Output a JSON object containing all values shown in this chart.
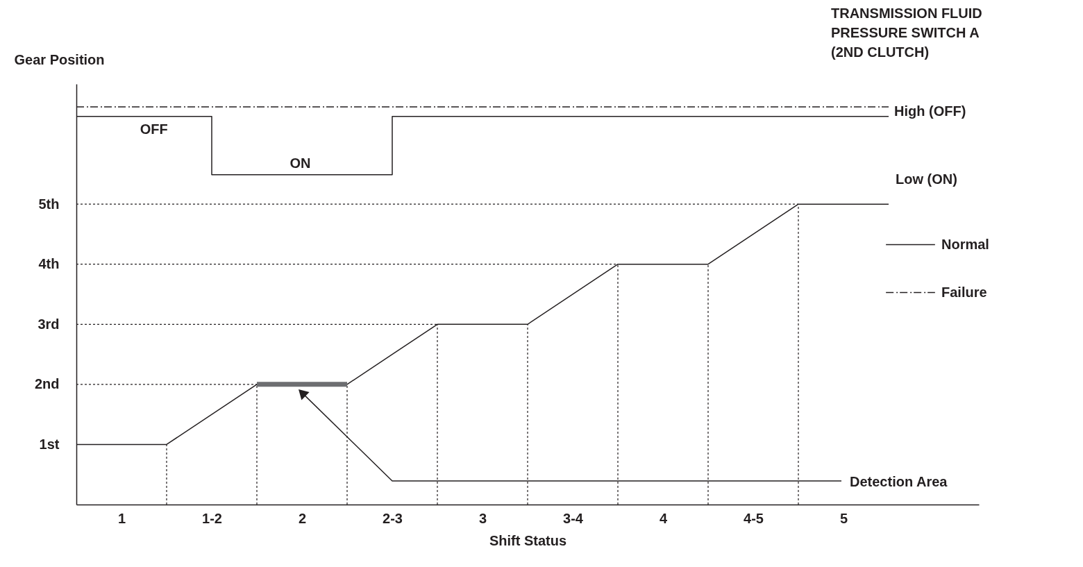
{
  "chart_data": {
    "type": "line",
    "title": "TRANSMISSION FLUID PRESSURE SWITCH A (2ND CLUTCH)",
    "xlabel": "Shift Status",
    "ylabel": "Gear Position",
    "xlim": [
      0.75,
      5.75
    ],
    "ylim": [
      0,
      7
    ],
    "xticks": [
      1,
      {
        "value": 1.5,
        "label": "1-2"
      },
      2,
      {
        "value": 2.5,
        "label": "2-3"
      },
      3,
      {
        "value": 3.5,
        "label": "3-4"
      },
      4,
      {
        "value": 4.5,
        "label": "4-5"
      },
      5
    ],
    "yticks": [
      {
        "value": 1,
        "label": "1st"
      },
      {
        "value": 2,
        "label": "2nd"
      },
      {
        "value": 3,
        "label": "3rd"
      },
      {
        "value": 4,
        "label": "4th"
      },
      {
        "value": 5,
        "label": "5th"
      }
    ],
    "x": [
      0.75,
      1.25,
      1.75,
      2.25,
      2.75,
      3.25,
      3.75,
      4.25,
      4.75,
      5.25
    ],
    "series": [
      {
        "color": "#231f20",
        "values": [
          1,
          1,
          2,
          2,
          3,
          3,
          4,
          4,
          5,
          5
        ]
      },
      {
        "color": "#6d6e71",
        "x": [
          1.75,
          2.25
        ],
        "values": [
          2,
          2
        ]
      },
      {
        "color": "#231f20",
        "line_style": "dotted",
        "x": [
          1.25,
          1.25
        ],
        "values": [
          0,
          1
        ]
      },
      {
        "color": "#231f20",
        "line_style": "dotted",
        "x": [
          1.75,
          1.75
        ],
        "values": [
          0,
          2
        ]
      },
      {
        "color": "#231f20",
        "line_style": "dotted",
        "x": [
          2.25,
          2.25
        ],
        "values": [
          0,
          2
        ]
      },
      {
        "color": "#231f20",
        "line_style": "dotted",
        "x": [
          2.75,
          2.75
        ],
        "values": [
          0,
          3
        ]
      },
      {
        "color": "#231f20",
        "line_style": "dotted",
        "x": [
          3.25,
          3.25
        ],
        "values": [
          0,
          3
        ]
      },
      {
        "color": "#231f20",
        "line_style": "dotted",
        "x": [
          3.75,
          3.75
        ],
        "values": [
          0,
          4
        ]
      },
      {
        "color": "#231f20",
        "line_style": "dotted",
        "x": [
          4.25,
          4.25
        ],
        "values": [
          0,
          4
        ]
      },
      {
        "color": "#231f20",
        "line_style": "dotted",
        "x": [
          4.75,
          4.75
        ],
        "values": [
          0,
          5
        ]
      },
      {
        "color": "#231f20",
        "line_style": "dotted",
        "x": [
          0.75,
          1.75
        ],
        "values": [
          2,
          2
        ]
      },
      {
        "color": "#231f20",
        "line_style": "dotted",
        "x": [
          0.75,
          2.75
        ],
        "values": [
          3,
          3
        ]
      },
      {
        "color": "#231f20",
        "line_style": "dotted",
        "x": [
          0.75,
          3.75
        ],
        "values": [
          4,
          4
        ]
      },
      {
        "color": "#231f20",
        "line_style": "dotted",
        "x": [
          0.75,
          4.75
        ],
        "values": [
          5,
          5
        ]
      },
      {
        "name": "Normal",
        "color": "#231f20",
        "x": [
          0.75,
          1.5,
          1.5,
          2.5,
          2.5,
          5.25
        ],
        "values": [
          6.46,
          6.46,
          5.49,
          5.49,
          6.46,
          6.46
        ]
      },
      {
        "name": "Failure",
        "color": "#231f20",
        "line_style": "dashdot",
        "x": [
          0.75,
          5.25
        ],
        "values": [
          6.62,
          6.62
        ]
      }
    ],
    "annotations": [
      {
        "text": "OFF",
        "x": 1.18,
        "y": 6.46
      },
      {
        "text": "ON",
        "x": 1.99,
        "y": 5.49
      },
      {
        "text": "High (OFF)",
        "x": 5.25,
        "y": 6.46
      },
      "Low (ON)",
      "Detection Area"
    ],
    "legend": "right",
    "line_style": "solid",
    "marker": "none"
  }
}
